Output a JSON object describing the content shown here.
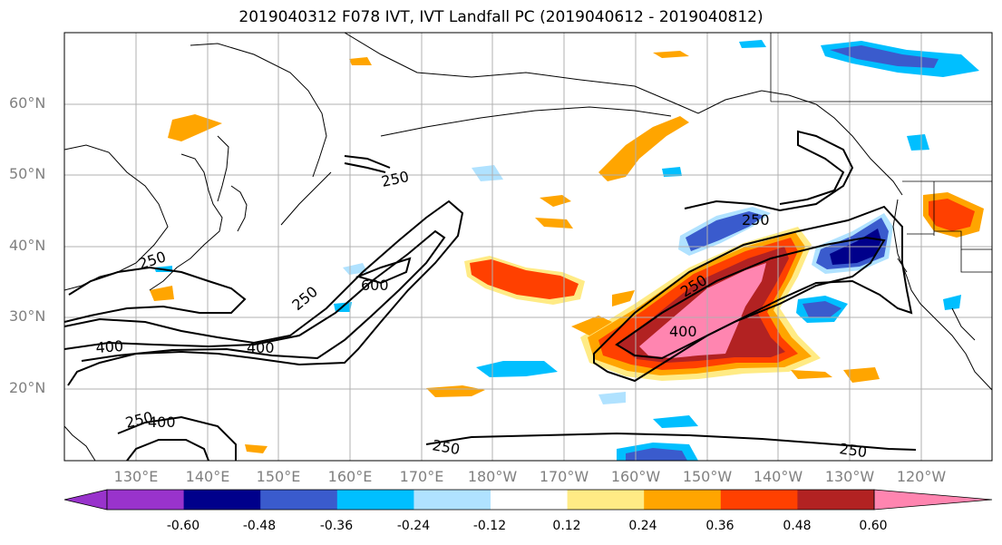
{
  "title": "2019040312 F078 IVT, IVT Landfall PC (2019040612 - 2019040812)",
  "lat_labels": [
    "60°N",
    "50°N",
    "40°N",
    "30°N",
    "20°N"
  ],
  "lon_labels": [
    "130°E",
    "140°E",
    "150°E",
    "160°E",
    "170°E",
    "180°W",
    "170°W",
    "160°W",
    "150°W",
    "140°W",
    "130°W",
    "120°W"
  ],
  "contour_labels": [
    "250",
    "250",
    "250",
    "250",
    "250",
    "250",
    "250",
    "250",
    "400",
    "400",
    "400",
    "400",
    "600"
  ],
  "colorbar": {
    "tick_labels": [
      "-0.60",
      "-0.48",
      "-0.36",
      "-0.24",
      "-0.12",
      "0.12",
      "0.24",
      "0.36",
      "0.48",
      "0.60"
    ],
    "colors": [
      "#9933cc",
      "#00008b",
      "#3a5bcd",
      "#00bfff",
      "#b0e2ff",
      "#ffffff",
      "#ffeb85",
      "#ffa500",
      "#ff4000",
      "#b22222",
      "#ff85b0"
    ]
  }
}
